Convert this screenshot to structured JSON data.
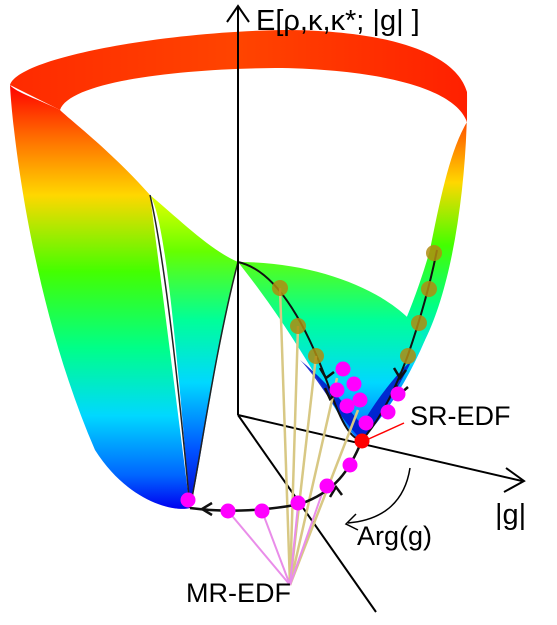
{
  "labels": {
    "energy_axis": "E[ρ,κ,κ*; |g| ]",
    "magnitude_axis": "|g|",
    "phase_label": "Arg(g)",
    "sr_label": "SR-EDF",
    "mr_label": "MR-EDF"
  },
  "colors": {
    "surface_low": "#0000ff",
    "surface_mid": "#00ff00",
    "surface_high": "#ff0000",
    "sr_point": "#ff0000",
    "mr_point": "#ff00ff",
    "olive_point": "#b08c10",
    "tan_line": "#d8c884",
    "pink_line": "#e98de9"
  },
  "icons": {
    "axis_arrow": "arrowhead-icon",
    "path_arrow": "chevron-arrow-icon"
  }
}
